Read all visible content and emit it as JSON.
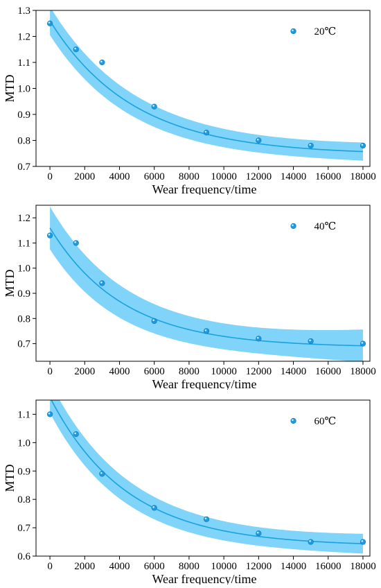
{
  "colors": {
    "line": "#1aa1de",
    "band": "#4fc3f7",
    "marker": "#1e9ae0"
  },
  "chart_data": [
    {
      "type": "scatter",
      "xlabel": "Wear frequency/time",
      "ylabel": "MTD",
      "legend": "20℃",
      "legend_position": "top-right",
      "grid": false,
      "xlim": [
        -800,
        18400
      ],
      "ylim": [
        0.7,
        1.3
      ],
      "xticks": [
        0,
        2000,
        4000,
        6000,
        8000,
        10000,
        12000,
        14000,
        16000,
        18000
      ],
      "yticks": [
        0.7,
        0.8,
        0.9,
        1.0,
        1.1,
        1.2,
        1.3
      ],
      "x": [
        0,
        1500,
        3000,
        6000,
        9000,
        12000,
        15000,
        18000
      ],
      "y": [
        1.25,
        1.15,
        1.1,
        0.93,
        0.83,
        0.8,
        0.78,
        0.78
      ],
      "fit": {
        "model": "exponential decay",
        "y0": 0.745,
        "A": 0.515,
        "t": 4800
      },
      "band_half_width": [
        0.055,
        0.028,
        0.035
      ]
    },
    {
      "type": "scatter",
      "xlabel": "Wear frequency/time",
      "ylabel": "MTD",
      "legend": "40℃",
      "legend_position": "top-right",
      "grid": false,
      "xlim": [
        -800,
        18400
      ],
      "ylim": [
        0.63,
        1.25
      ],
      "xticks": [
        0,
        2000,
        4000,
        6000,
        8000,
        10000,
        12000,
        14000,
        16000,
        18000
      ],
      "yticks": [
        0.7,
        0.8,
        0.9,
        1.0,
        1.1,
        1.2
      ],
      "x": [
        0,
        1500,
        3000,
        6000,
        9000,
        12000,
        15000,
        18000
      ],
      "y": [
        1.13,
        1.1,
        0.94,
        0.79,
        0.75,
        0.72,
        0.71,
        0.7
      ],
      "fit": {
        "model": "exponential decay",
        "y0": 0.685,
        "A": 0.475,
        "t": 4200
      },
      "band_half_width": [
        0.085,
        0.03,
        0.065
      ]
    },
    {
      "type": "scatter",
      "xlabel": "Wear frequency/time",
      "ylabel": "MTD",
      "legend": "60℃",
      "legend_position": "top-right",
      "grid": false,
      "xlim": [
        -800,
        18400
      ],
      "ylim": [
        0.6,
        1.15
      ],
      "xticks": [
        0,
        2000,
        4000,
        6000,
        8000,
        10000,
        12000,
        14000,
        16000,
        18000
      ],
      "yticks": [
        0.6,
        0.7,
        0.8,
        0.9,
        1.0,
        1.1
      ],
      "x": [
        0,
        1500,
        3000,
        6000,
        9000,
        12000,
        15000,
        18000
      ],
      "y": [
        1.1,
        1.03,
        0.89,
        0.77,
        0.73,
        0.68,
        0.65,
        0.65
      ],
      "fit": {
        "model": "exponential decay",
        "y0": 0.635,
        "A": 0.525,
        "t": 4400
      },
      "band_half_width": [
        0.055,
        0.025,
        0.035
      ]
    }
  ]
}
